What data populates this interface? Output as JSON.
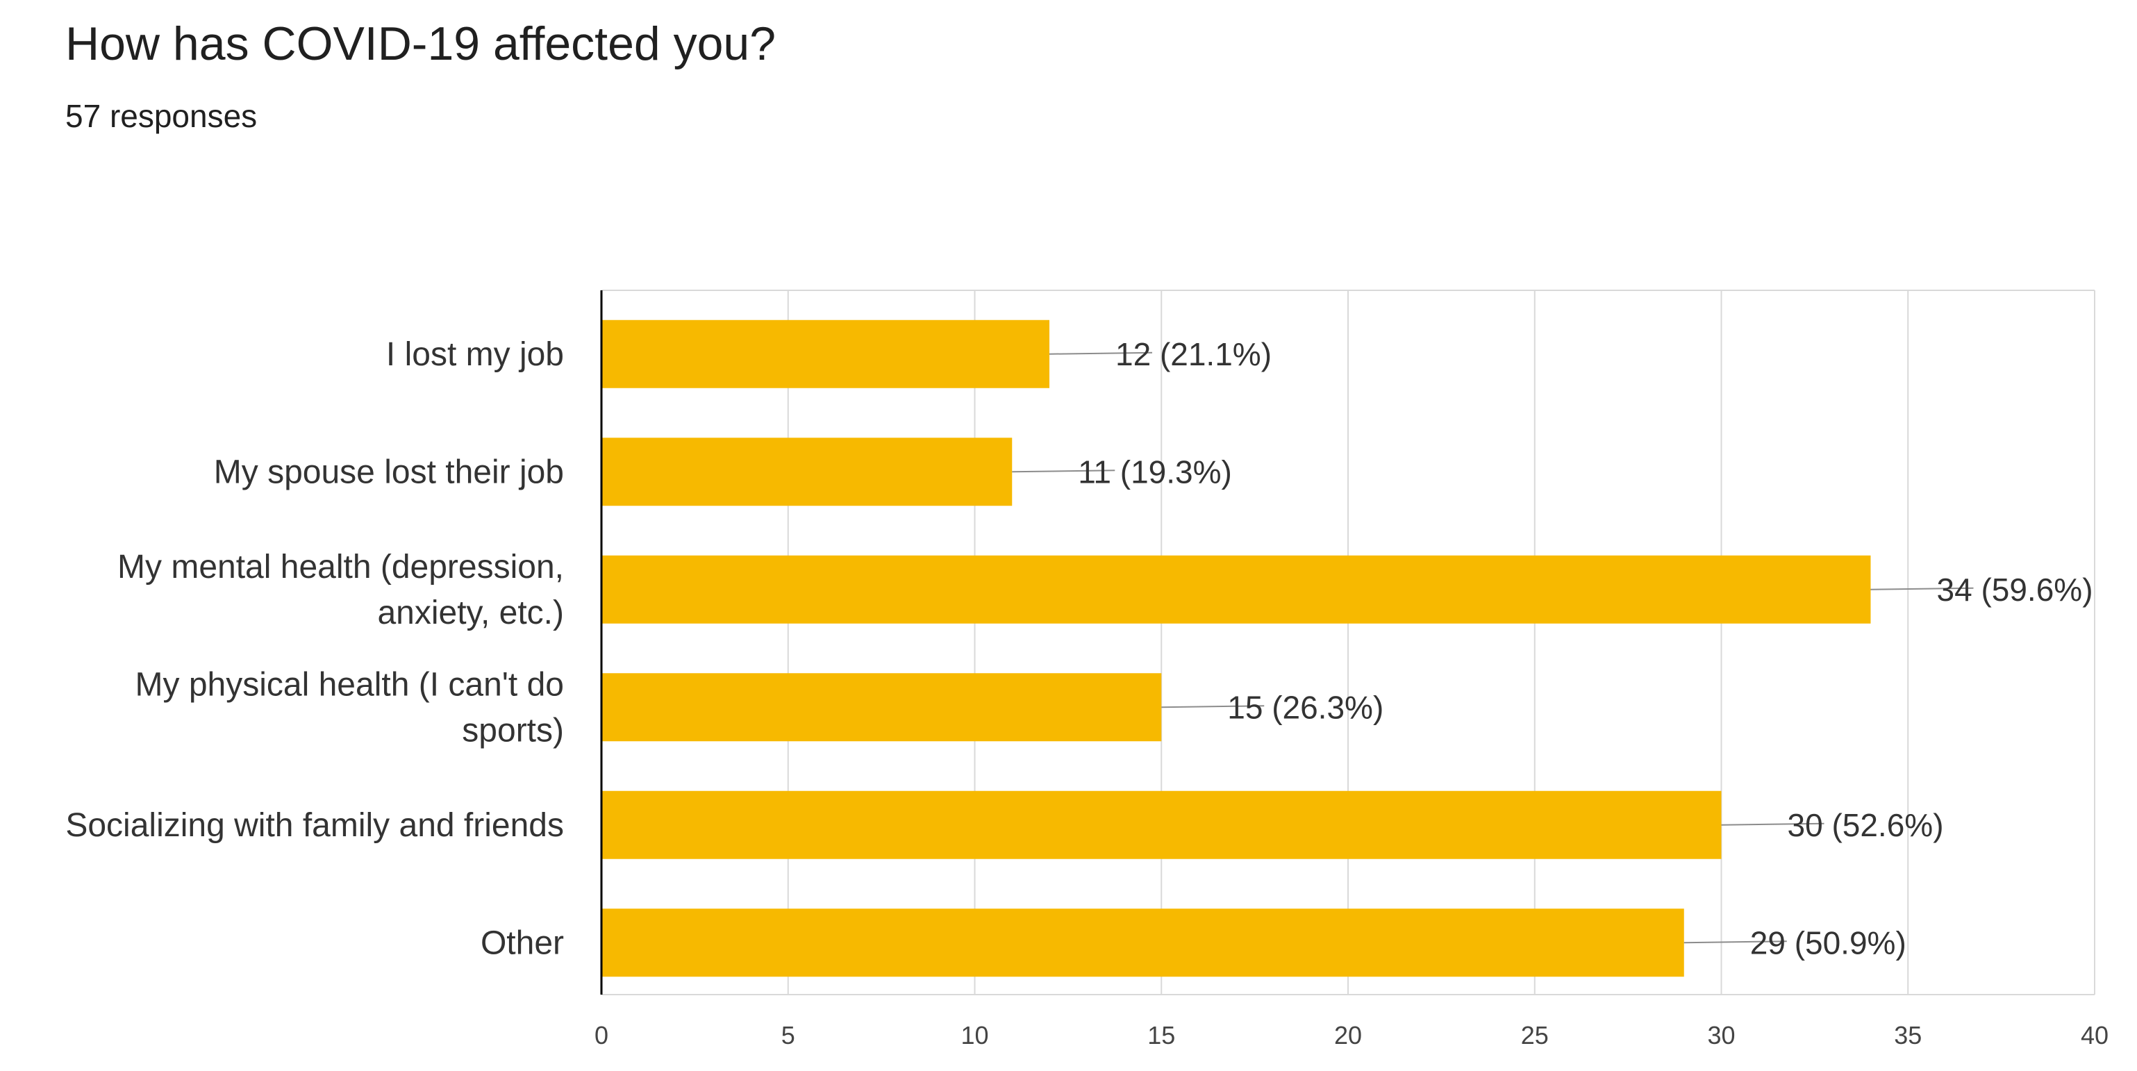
{
  "header": {
    "title": "How has COVID-19 affected you?",
    "responses": "57 responses"
  },
  "colors": {
    "bar": "#F7B900",
    "grid": "#D9D9D9",
    "axis": "#000000",
    "text": "#333333",
    "leader": "#8C8C8C"
  },
  "chart_data": {
    "type": "bar",
    "orientation": "horizontal",
    "title": "How has COVID-19 affected you?",
    "subtitle": "57 responses",
    "categories": [
      [
        "I lost my job"
      ],
      [
        "My spouse lost their job"
      ],
      [
        "My mental health (depression,",
        "anxiety, etc.)"
      ],
      [
        "My physical health (I can't do",
        "sports)"
      ],
      [
        "Socializing with family and friends"
      ],
      [
        "Other"
      ]
    ],
    "values": [
      12,
      11,
      34,
      15,
      30,
      29
    ],
    "data_labels": [
      "12 (21.1%)",
      "11 (19.3%)",
      "34 (59.6%)",
      "15 (26.3%)",
      "30 (52.6%)",
      "29 (50.9%)"
    ],
    "xlim": [
      0,
      40
    ],
    "xticks": [
      0,
      5,
      10,
      15,
      20,
      25,
      30,
      35,
      40
    ],
    "xlabel": "",
    "ylabel": "",
    "grid": true,
    "legend": "none"
  }
}
